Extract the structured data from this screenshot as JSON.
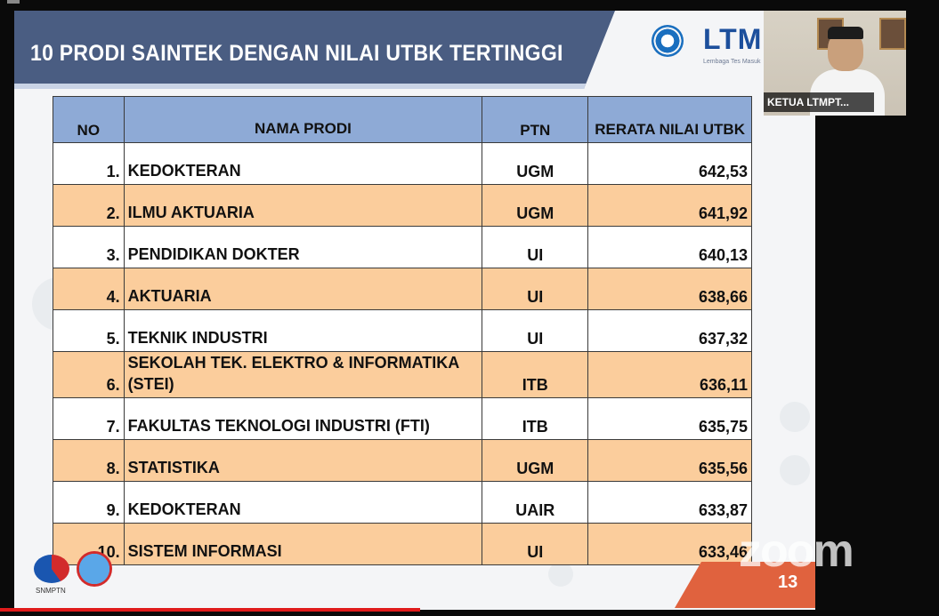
{
  "slide": {
    "title": "10 PRODI SAINTEK DENGAN NILAI UTBK TERTINGGI",
    "logo_text": "LTM",
    "logo_subtext": "Lembaga Tes Masuk",
    "page_number": "13",
    "footer_logo_label": "SNMPTN"
  },
  "table": {
    "headers": {
      "no": "NO",
      "name": "NAMA PRODI",
      "ptn": "PTN",
      "value": "RERATA NILAI UTBK"
    },
    "rows": [
      {
        "no": "1.",
        "name": "KEDOKTERAN",
        "ptn": "UGM",
        "value": "642,53"
      },
      {
        "no": "2.",
        "name": "ILMU AKTUARIA",
        "ptn": "UGM",
        "value": "641,92"
      },
      {
        "no": "3.",
        "name": "PENDIDIKAN DOKTER",
        "ptn": "UI",
        "value": "640,13"
      },
      {
        "no": "4.",
        "name": "AKTUARIA",
        "ptn": "UI",
        "value": "638,66"
      },
      {
        "no": "5.",
        "name": "TEKNIK INDUSTRI",
        "ptn": "UI",
        "value": "637,32"
      },
      {
        "no": "6.",
        "name": "SEKOLAH TEK. ELEKTRO & INFORMATIKA (STEI)",
        "ptn": "ITB",
        "value": "636,11"
      },
      {
        "no": "7.",
        "name": "FAKULTAS TEKNOLOGI INDUSTRI (FTI)",
        "ptn": "ITB",
        "value": "635,75"
      },
      {
        "no": "8.",
        "name": "STATISTIKA",
        "ptn": "UGM",
        "value": "635,56"
      },
      {
        "no": "9.",
        "name": "KEDOKTERAN",
        "ptn": "UAIR",
        "value": "633,87"
      },
      {
        "no": "10.",
        "name": "SISTEM INFORMASI",
        "ptn": "UI",
        "value": "633,46"
      }
    ]
  },
  "video": {
    "participant_name": "KETUA LTMPT..."
  },
  "watermark": "zoom",
  "colors": {
    "title_bar": "#4a5d82",
    "header_bg": "#8eaad6",
    "row_alt": "#fbcd9c",
    "accent_red": "#e0623e",
    "progress_red": "#e01b1b"
  }
}
